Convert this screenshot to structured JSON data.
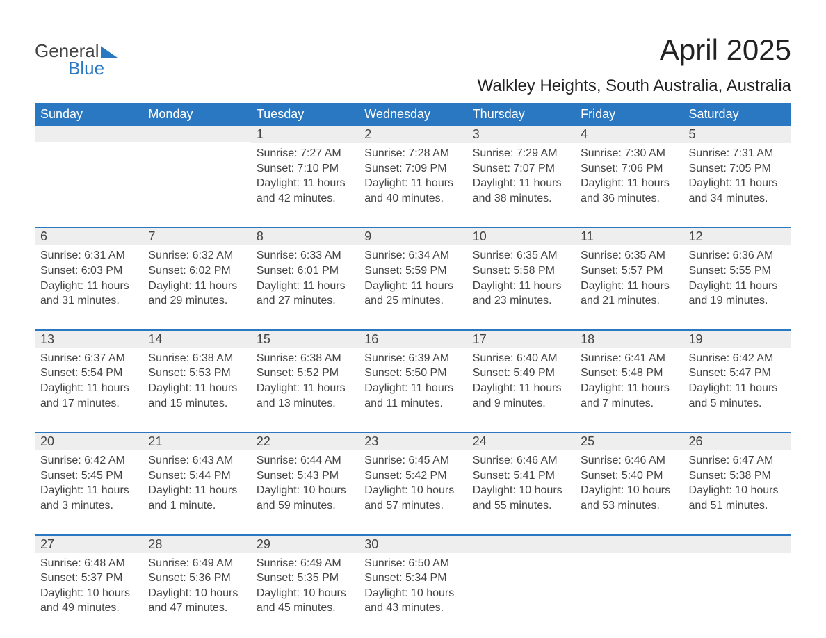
{
  "logo": {
    "word1": "General",
    "word2": "Blue"
  },
  "title": "April 2025",
  "location": "Walkley Heights, South Australia, Australia",
  "colors": {
    "header_bg": "#2b78c2",
    "header_text": "#ffffff",
    "daynum_bg": "#eeeeee",
    "row_border": "#2b78c2",
    "body_text": "#444444",
    "title_text": "#222222"
  },
  "weekdays": [
    "Sunday",
    "Monday",
    "Tuesday",
    "Wednesday",
    "Thursday",
    "Friday",
    "Saturday"
  ],
  "weeks": [
    [
      null,
      null,
      {
        "n": "1",
        "sr": "Sunrise: 7:27 AM",
        "ss": "Sunset: 7:10 PM",
        "dl": "Daylight: 11 hours and 42 minutes."
      },
      {
        "n": "2",
        "sr": "Sunrise: 7:28 AM",
        "ss": "Sunset: 7:09 PM",
        "dl": "Daylight: 11 hours and 40 minutes."
      },
      {
        "n": "3",
        "sr": "Sunrise: 7:29 AM",
        "ss": "Sunset: 7:07 PM",
        "dl": "Daylight: 11 hours and 38 minutes."
      },
      {
        "n": "4",
        "sr": "Sunrise: 7:30 AM",
        "ss": "Sunset: 7:06 PM",
        "dl": "Daylight: 11 hours and 36 minutes."
      },
      {
        "n": "5",
        "sr": "Sunrise: 7:31 AM",
        "ss": "Sunset: 7:05 PM",
        "dl": "Daylight: 11 hours and 34 minutes."
      }
    ],
    [
      {
        "n": "6",
        "sr": "Sunrise: 6:31 AM",
        "ss": "Sunset: 6:03 PM",
        "dl": "Daylight: 11 hours and 31 minutes."
      },
      {
        "n": "7",
        "sr": "Sunrise: 6:32 AM",
        "ss": "Sunset: 6:02 PM",
        "dl": "Daylight: 11 hours and 29 minutes."
      },
      {
        "n": "8",
        "sr": "Sunrise: 6:33 AM",
        "ss": "Sunset: 6:01 PM",
        "dl": "Daylight: 11 hours and 27 minutes."
      },
      {
        "n": "9",
        "sr": "Sunrise: 6:34 AM",
        "ss": "Sunset: 5:59 PM",
        "dl": "Daylight: 11 hours and 25 minutes."
      },
      {
        "n": "10",
        "sr": "Sunrise: 6:35 AM",
        "ss": "Sunset: 5:58 PM",
        "dl": "Daylight: 11 hours and 23 minutes."
      },
      {
        "n": "11",
        "sr": "Sunrise: 6:35 AM",
        "ss": "Sunset: 5:57 PM",
        "dl": "Daylight: 11 hours and 21 minutes."
      },
      {
        "n": "12",
        "sr": "Sunrise: 6:36 AM",
        "ss": "Sunset: 5:55 PM",
        "dl": "Daylight: 11 hours and 19 minutes."
      }
    ],
    [
      {
        "n": "13",
        "sr": "Sunrise: 6:37 AM",
        "ss": "Sunset: 5:54 PM",
        "dl": "Daylight: 11 hours and 17 minutes."
      },
      {
        "n": "14",
        "sr": "Sunrise: 6:38 AM",
        "ss": "Sunset: 5:53 PM",
        "dl": "Daylight: 11 hours and 15 minutes."
      },
      {
        "n": "15",
        "sr": "Sunrise: 6:38 AM",
        "ss": "Sunset: 5:52 PM",
        "dl": "Daylight: 11 hours and 13 minutes."
      },
      {
        "n": "16",
        "sr": "Sunrise: 6:39 AM",
        "ss": "Sunset: 5:50 PM",
        "dl": "Daylight: 11 hours and 11 minutes."
      },
      {
        "n": "17",
        "sr": "Sunrise: 6:40 AM",
        "ss": "Sunset: 5:49 PM",
        "dl": "Daylight: 11 hours and 9 minutes."
      },
      {
        "n": "18",
        "sr": "Sunrise: 6:41 AM",
        "ss": "Sunset: 5:48 PM",
        "dl": "Daylight: 11 hours and 7 minutes."
      },
      {
        "n": "19",
        "sr": "Sunrise: 6:42 AM",
        "ss": "Sunset: 5:47 PM",
        "dl": "Daylight: 11 hours and 5 minutes."
      }
    ],
    [
      {
        "n": "20",
        "sr": "Sunrise: 6:42 AM",
        "ss": "Sunset: 5:45 PM",
        "dl": "Daylight: 11 hours and 3 minutes."
      },
      {
        "n": "21",
        "sr": "Sunrise: 6:43 AM",
        "ss": "Sunset: 5:44 PM",
        "dl": "Daylight: 11 hours and 1 minute."
      },
      {
        "n": "22",
        "sr": "Sunrise: 6:44 AM",
        "ss": "Sunset: 5:43 PM",
        "dl": "Daylight: 10 hours and 59 minutes."
      },
      {
        "n": "23",
        "sr": "Sunrise: 6:45 AM",
        "ss": "Sunset: 5:42 PM",
        "dl": "Daylight: 10 hours and 57 minutes."
      },
      {
        "n": "24",
        "sr": "Sunrise: 6:46 AM",
        "ss": "Sunset: 5:41 PM",
        "dl": "Daylight: 10 hours and 55 minutes."
      },
      {
        "n": "25",
        "sr": "Sunrise: 6:46 AM",
        "ss": "Sunset: 5:40 PM",
        "dl": "Daylight: 10 hours and 53 minutes."
      },
      {
        "n": "26",
        "sr": "Sunrise: 6:47 AM",
        "ss": "Sunset: 5:38 PM",
        "dl": "Daylight: 10 hours and 51 minutes."
      }
    ],
    [
      {
        "n": "27",
        "sr": "Sunrise: 6:48 AM",
        "ss": "Sunset: 5:37 PM",
        "dl": "Daylight: 10 hours and 49 minutes."
      },
      {
        "n": "28",
        "sr": "Sunrise: 6:49 AM",
        "ss": "Sunset: 5:36 PM",
        "dl": "Daylight: 10 hours and 47 minutes."
      },
      {
        "n": "29",
        "sr": "Sunrise: 6:49 AM",
        "ss": "Sunset: 5:35 PM",
        "dl": "Daylight: 10 hours and 45 minutes."
      },
      {
        "n": "30",
        "sr": "Sunrise: 6:50 AM",
        "ss": "Sunset: 5:34 PM",
        "dl": "Daylight: 10 hours and 43 minutes."
      },
      null,
      null,
      null
    ]
  ]
}
